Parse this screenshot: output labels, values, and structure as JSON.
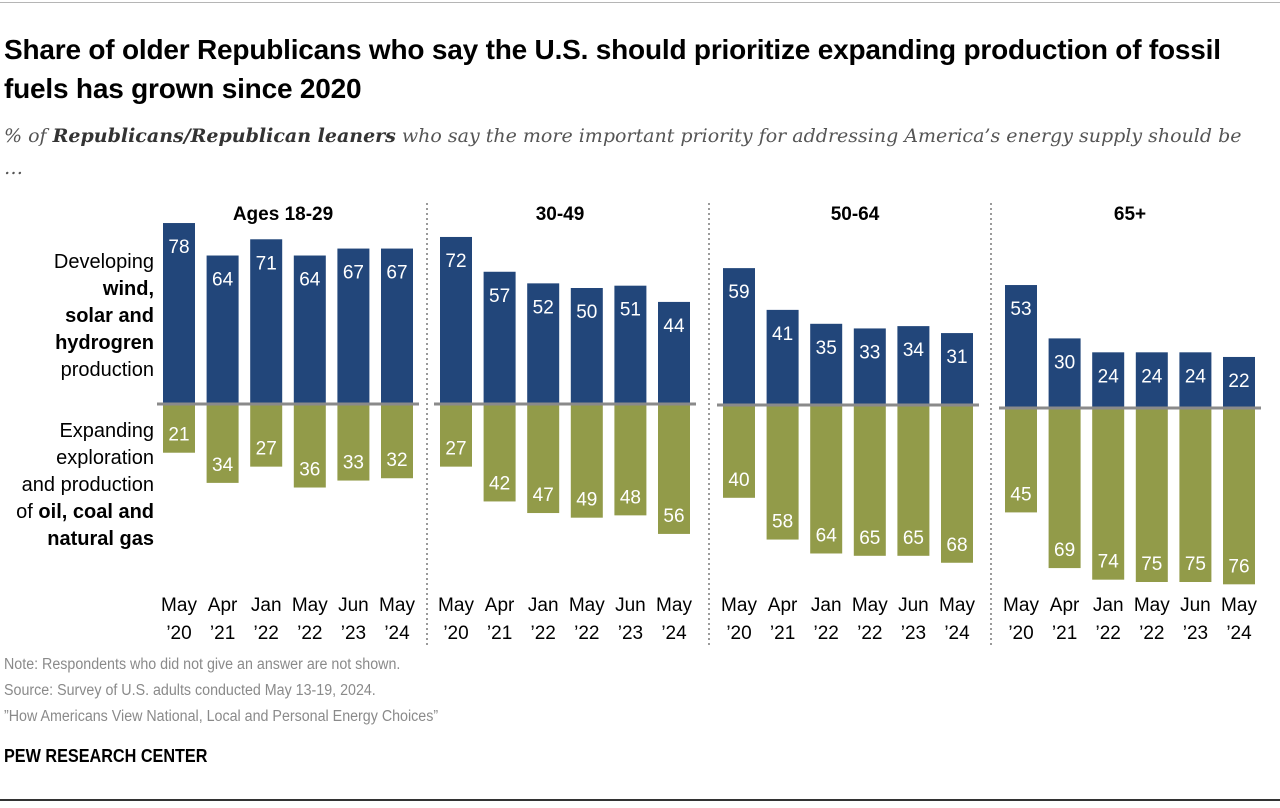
{
  "title": "Share of older Republicans who say the U.S. should prioritize expanding production of fossil fuels has grown since 2020",
  "subtitle": {
    "prefix": "% of ",
    "bold": "Republicans/Republican leaners",
    "suffix": " who say the more important priority for addressing America’s energy supply should be …"
  },
  "row_labels": {
    "top": {
      "line1": "Developing",
      "bold_lines": [
        "wind,",
        "solar and",
        "hydrogren"
      ],
      "line_last": "production"
    },
    "bottom": {
      "lines": [
        "Expanding",
        "exploration",
        "and production"
      ],
      "prefix": "of ",
      "bold1": "oil, coal and",
      "bold2": "natural gas"
    }
  },
  "colors": {
    "renewables": "#22467a",
    "fossil": "#929b49",
    "baseline": "#8a8a8a",
    "divider": "#9a9a9a"
  },
  "chart_data": {
    "type": "bar",
    "subtype": "diverging grouped panels",
    "categories": [
      [
        "May",
        "’20"
      ],
      [
        "Apr",
        "’21"
      ],
      [
        "Jan",
        "’22"
      ],
      [
        "May",
        "’22"
      ],
      [
        "Jun",
        "’23"
      ],
      [
        "May",
        "’24"
      ]
    ],
    "panels": [
      {
        "title": "Ages 18-29",
        "renewables": [
          78,
          64,
          71,
          64,
          67,
          67
        ],
        "fossil": [
          21,
          34,
          27,
          36,
          33,
          32
        ]
      },
      {
        "title": "30-49",
        "renewables": [
          72,
          57,
          52,
          50,
          51,
          44
        ],
        "fossil": [
          27,
          42,
          47,
          49,
          48,
          56
        ]
      },
      {
        "title": "50-64",
        "renewables": [
          59,
          41,
          35,
          33,
          34,
          31
        ],
        "fossil": [
          40,
          58,
          64,
          65,
          65,
          68
        ]
      },
      {
        "title": "65+",
        "renewables": [
          53,
          30,
          24,
          24,
          24,
          22
        ],
        "fossil": [
          45,
          69,
          74,
          75,
          75,
          76
        ]
      }
    ],
    "grid": false,
    "legend": "row labels left"
  },
  "notes": {
    "note": "Note: Respondents who did not give an answer are not shown.",
    "source": "Source: Survey of U.S. adults conducted May 13-19, 2024.",
    "report": "”How Americans View National, Local and Personal Energy Choices”"
  },
  "brand": "PEW RESEARCH CENTER"
}
